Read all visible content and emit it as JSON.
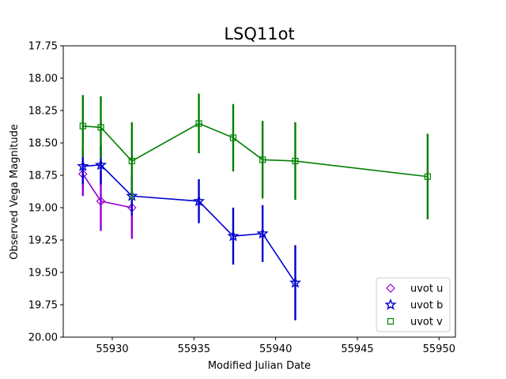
{
  "chart_data": {
    "type": "scatter",
    "title": "LSQ11ot",
    "xlabel": "Modified Julian Date",
    "ylabel": "Observed Vega Magnitude",
    "xlim": [
      55927,
      55951
    ],
    "ylim": [
      20.0,
      17.75
    ],
    "y_inverted": true,
    "xticks": [
      55930,
      55935,
      55940,
      55945,
      55950
    ],
    "xtick_labels": [
      "55930",
      "55935",
      "55940",
      "55945",
      "55950"
    ],
    "yticks": [
      17.75,
      18.0,
      18.25,
      18.5,
      18.75,
      19.0,
      19.25,
      19.5,
      19.75,
      20.0
    ],
    "ytick_labels": [
      "17.75",
      "18.00",
      "18.25",
      "18.50",
      "18.75",
      "19.00",
      "19.25",
      "19.50",
      "19.75",
      "20.00"
    ],
    "grid": false,
    "legend_position": "bottom-right",
    "series": [
      {
        "name": "uvot u",
        "color": "#9400d3",
        "marker": "diamond",
        "x": [
          55928.2,
          55929.3,
          55931.2
        ],
        "y": [
          18.74,
          18.95,
          19.0
        ],
        "err": [
          0.17,
          0.23,
          0.24
        ]
      },
      {
        "name": "uvot b",
        "color": "#0000cd",
        "marker": "star",
        "x": [
          55928.2,
          55929.3,
          55931.2,
          55935.3,
          55937.4,
          55939.2,
          55941.2
        ],
        "y": [
          18.68,
          18.67,
          18.91,
          18.95,
          19.22,
          19.2,
          19.58
        ],
        "err": [
          0.14,
          0.15,
          0.15,
          0.17,
          0.22,
          0.22,
          0.29
        ]
      },
      {
        "name": "uvot v",
        "color": "#008000",
        "marker": "square",
        "x": [
          55928.2,
          55929.3,
          55931.2,
          55935.3,
          55937.4,
          55939.2,
          55941.2,
          55949.3
        ],
        "y": [
          18.37,
          18.38,
          18.64,
          18.35,
          18.46,
          18.63,
          18.64,
          18.76
        ],
        "err": [
          0.24,
          0.24,
          0.3,
          0.23,
          0.26,
          0.3,
          0.3,
          0.33
        ]
      }
    ]
  }
}
